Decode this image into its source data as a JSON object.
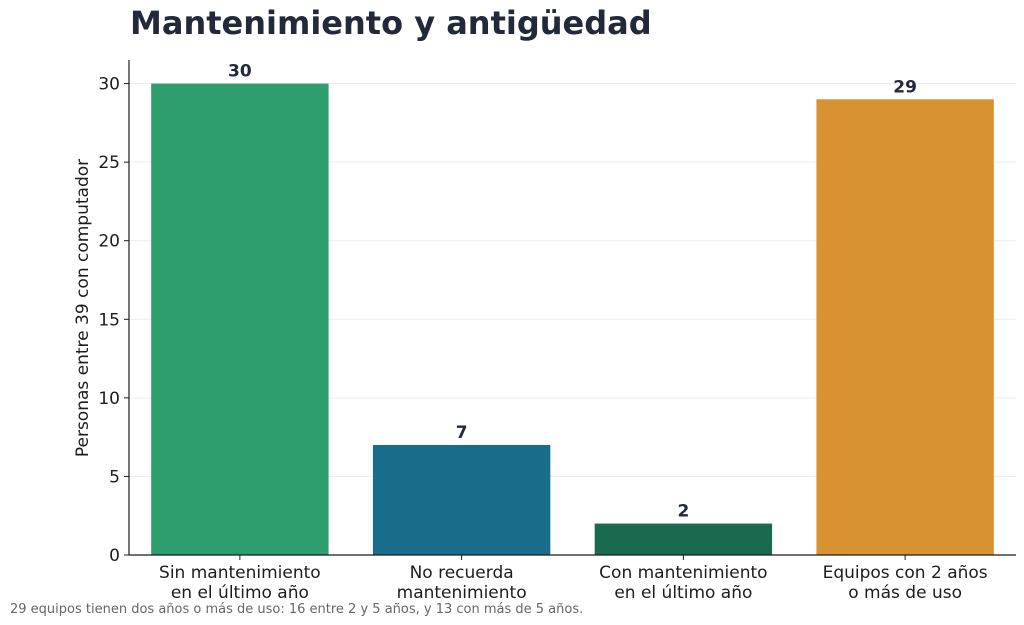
{
  "chart_data": {
    "type": "bar",
    "title": "Mantenimiento y antigüedad",
    "ylabel": "Personas entre 39 con computador",
    "xlabel": "",
    "categories": [
      [
        "Sin mantenimiento",
        "en el último año"
      ],
      [
        "No recuerda",
        "mantenimiento"
      ],
      [
        "Con mantenimiento",
        "en el último año"
      ],
      [
        "Equipos con 2 años",
        "o más de uso"
      ]
    ],
    "values": [
      30,
      7,
      2,
      29
    ],
    "colors": [
      "#2e9e6e",
      "#196c8a",
      "#186b4f",
      "#d99232"
    ],
    "ylim": [
      0,
      31.5
    ],
    "yticks": [
      0,
      5,
      10,
      15,
      20,
      25,
      30
    ],
    "grid": "horizontal",
    "legend": "none"
  },
  "footnote": "29 equipos tienen dos años o más de uso: 16 entre 2 y 5 años, y 13 con más de 5 años."
}
